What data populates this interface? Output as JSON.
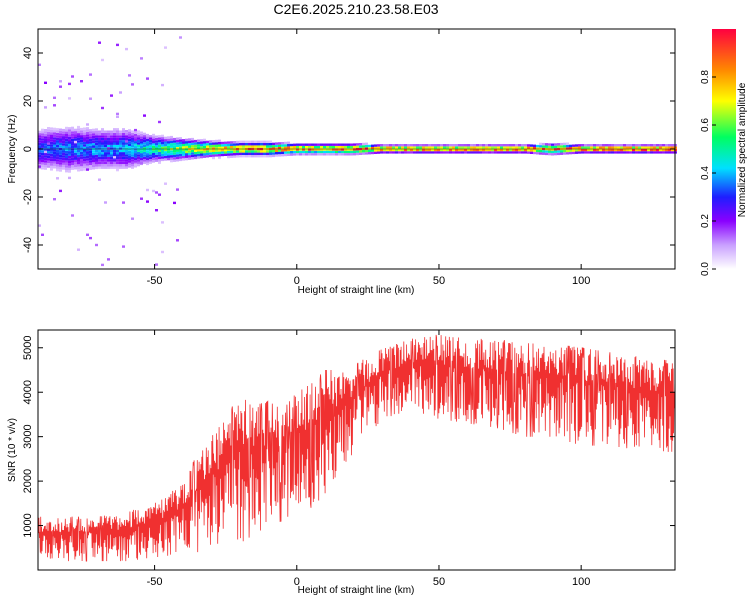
{
  "title": "C2E6.2025.210.23.58.E03",
  "chart_data": [
    {
      "type": "heatmap",
      "panel": "top",
      "xlabel": "Height of straight line (km)",
      "ylabel": "Frequency (Hz)",
      "xlim": [
        -91,
        133
      ],
      "ylim": [
        -50,
        50
      ],
      "xticks": [
        -50,
        0,
        50,
        100
      ],
      "yticks": [
        -40,
        -20,
        0,
        20,
        40
      ],
      "colorbar": {
        "label": "Normalized spectral amplitude",
        "range": [
          0,
          1
        ],
        "ticks": [
          "0.0",
          "0.2",
          "0.4",
          "0.6",
          "0.8"
        ],
        "colors": [
          "#ffffff",
          "#c9a0ff",
          "#8a00ff",
          "#1e1eff",
          "#00e0ff",
          "#00ff60",
          "#ffff00",
          "#ff8800",
          "#ff0040"
        ]
      },
      "center_band": {
        "note_free": true,
        "x": [
          -91,
          -80,
          -70,
          -60,
          -50,
          -40,
          -30,
          -20,
          -10,
          0,
          10,
          20,
          30,
          40,
          50,
          60,
          70,
          80,
          90,
          100,
          110,
          120,
          133
        ],
        "frequency_halfwidth": [
          8,
          9,
          8,
          8,
          5,
          4,
          3,
          2.5,
          2.5,
          2,
          2,
          2,
          1.5,
          1.5,
          1.5,
          1.5,
          1.5,
          1.5,
          2,
          1.5,
          1.5,
          1.5,
          1.5
        ],
        "peak_amplitude": [
          0.35,
          0.38,
          0.4,
          0.42,
          0.55,
          0.68,
          0.8,
          0.88,
          0.9,
          0.92,
          0.88,
          0.92,
          0.95,
          0.95,
          0.95,
          0.95,
          0.95,
          0.92,
          0.9,
          1.0,
          1.0,
          1.0,
          1.0
        ]
      }
    },
    {
      "type": "line",
      "panel": "bottom",
      "xlabel": "Height of straight line (km)",
      "ylabel": "SNR (10 * v/v)",
      "xlim": [
        -91,
        133
      ],
      "ylim": [
        0,
        5400
      ],
      "xticks": [
        -50,
        0,
        50,
        100
      ],
      "yticks": [
        1000,
        2000,
        3000,
        4000,
        5000
      ],
      "color": "#f03030",
      "envelope": {
        "x": [
          -91,
          -80,
          -70,
          -60,
          -50,
          -45,
          -40,
          -35,
          -30,
          -25,
          -20,
          -15,
          -10,
          -5,
          0,
          5,
          10,
          15,
          20,
          25,
          30,
          35,
          40,
          50,
          60,
          70,
          80,
          90,
          100,
          110,
          120,
          133
        ],
        "upper": [
          1200,
          1200,
          1200,
          1300,
          1500,
          1700,
          2000,
          2600,
          3000,
          3400,
          4000,
          3700,
          3800,
          3600,
          4000,
          4200,
          4500,
          4500,
          4600,
          4800,
          5000,
          5100,
          5200,
          5300,
          5200,
          5200,
          5100,
          5100,
          5000,
          4900,
          4800,
          4700
        ],
        "lower": [
          200,
          200,
          200,
          200,
          250,
          300,
          350,
          400,
          500,
          500,
          600,
          800,
          1000,
          1100,
          1300,
          1400,
          1700,
          2200,
          2600,
          3000,
          3400,
          3500,
          3600,
          3400,
          3300,
          3200,
          3000,
          3000,
          2800,
          2800,
          2700,
          2600
        ]
      }
    }
  ]
}
